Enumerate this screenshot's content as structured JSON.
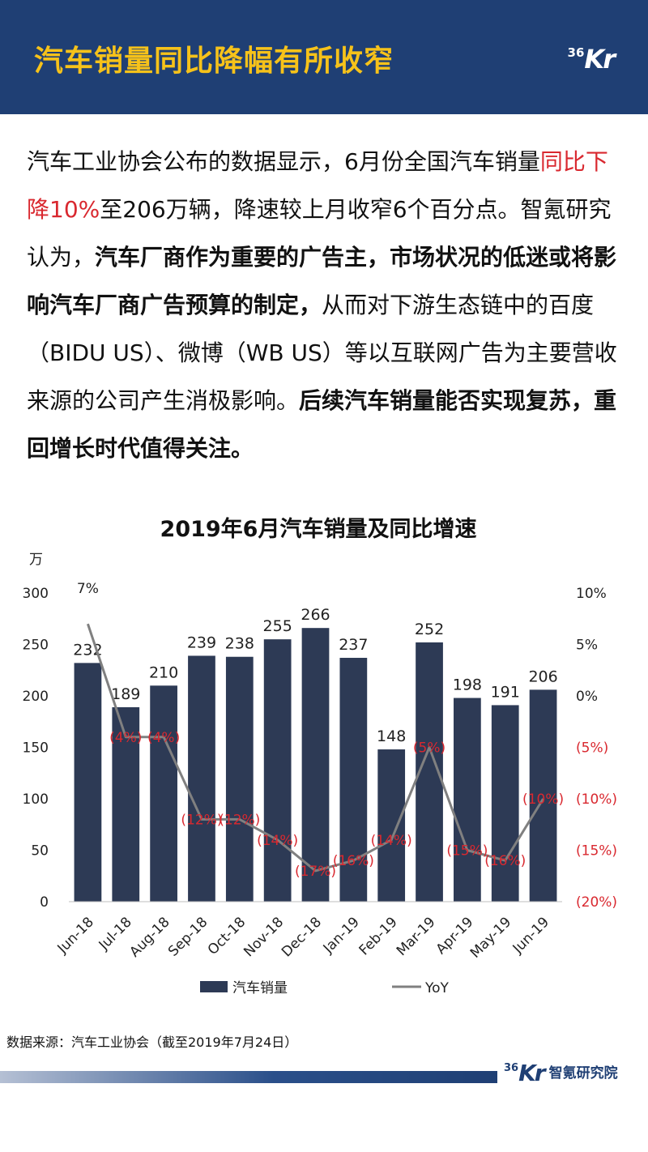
{
  "header": {
    "title": "汽车销量同比降幅有所收窄",
    "logo_num": "36",
    "logo_kr": "Kr"
  },
  "intro": {
    "p1": "汽车工业协会公布的数据显示，6月份全国汽车销量",
    "p1_red": "同比下降10%",
    "p2": "至206万辆，降速较上月收窄6个百分点。智氪研究认为，",
    "p2_bold": "汽车厂商作为重要的广告主，市场状况的低迷或将影响汽车厂商广告预算的制定，",
    "p3": "从而对下游生态链中的百度（BIDU US）、微博（WB US）等以互联网广告为主要营收来源的公司产生消极影响。",
    "p3_bold": "后续汽车销量能否实现复苏，重回增长时代值得关注。"
  },
  "chart_data": {
    "type": "bar",
    "title": "2019年6月汽车销量及同比增速",
    "ylabel": "万",
    "categories": [
      "Jun-18",
      "Jul-18",
      "Aug-18",
      "Sep-18",
      "Oct-18",
      "Nov-18",
      "Dec-18",
      "Jan-19",
      "Feb-19",
      "Mar-19",
      "Apr-19",
      "May-19",
      "Jun-19"
    ],
    "series": [
      {
        "name": "汽车销量",
        "type": "bar",
        "axis": "left",
        "values": [
          232,
          189,
          210,
          239,
          238,
          255,
          266,
          237,
          148,
          252,
          198,
          191,
          206
        ],
        "labels": [
          "232",
          "189",
          "210",
          "239",
          "238",
          "255",
          "266",
          "237",
          "148",
          "252",
          "198",
          "191",
          "206"
        ]
      },
      {
        "name": "YoY",
        "type": "line",
        "axis": "right",
        "values": [
          7,
          -4,
          -4,
          -12,
          -12,
          -14,
          -17,
          -16,
          -14,
          -5,
          -15,
          -16,
          -10
        ],
        "labels": [
          "7%",
          "(4%)",
          "(4%)",
          "(12%)",
          "(12%)",
          "(14%)",
          "(17%)",
          "(16%)",
          "(14%)",
          "(5%)",
          "(15%)",
          "(16%)",
          "(10%)"
        ]
      }
    ],
    "ylim": [
      0,
      300
    ],
    "yticks": [
      "0",
      "50",
      "100",
      "150",
      "200",
      "250",
      "300"
    ],
    "y2lim": [
      -20,
      10
    ],
    "y2ticks": [
      "(20%)",
      "(15%)",
      "(10%)",
      "(5%)",
      "0%",
      "5%",
      "10%"
    ],
    "legend_position": "bottom",
    "colors": {
      "bar": "#2d3a55",
      "line": "#808080",
      "negative": "#d9282f",
      "text": "#222222"
    }
  },
  "footer": {
    "source": "数据来源：汽车工业协会（截至2019年7月24日）",
    "logo_num": "36",
    "logo_kr": "Kr",
    "org": "智氪研究院"
  }
}
